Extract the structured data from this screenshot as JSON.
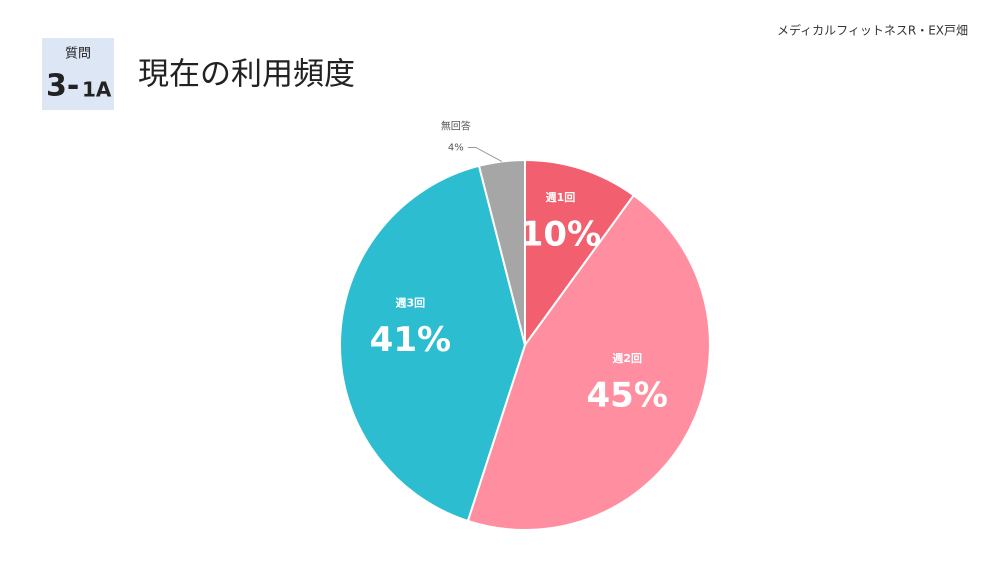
{
  "header": {
    "organization": "メディカルフィットネスR・EX戸畑",
    "badge_label": "質問",
    "badge_number": "3-",
    "badge_suffix": "1A",
    "title": "現在の利用頻度"
  },
  "chart_data": {
    "type": "pie",
    "categories": [
      "週1回",
      "週2回",
      "週3回",
      "無回答"
    ],
    "values": [
      10,
      45,
      41,
      4
    ],
    "value_labels": [
      "10%",
      "45%",
      "41%",
      "4%"
    ],
    "colors": [
      "#f2606f",
      "#ff8fa0",
      "#2dbdd0",
      "#a6a6a6"
    ]
  }
}
